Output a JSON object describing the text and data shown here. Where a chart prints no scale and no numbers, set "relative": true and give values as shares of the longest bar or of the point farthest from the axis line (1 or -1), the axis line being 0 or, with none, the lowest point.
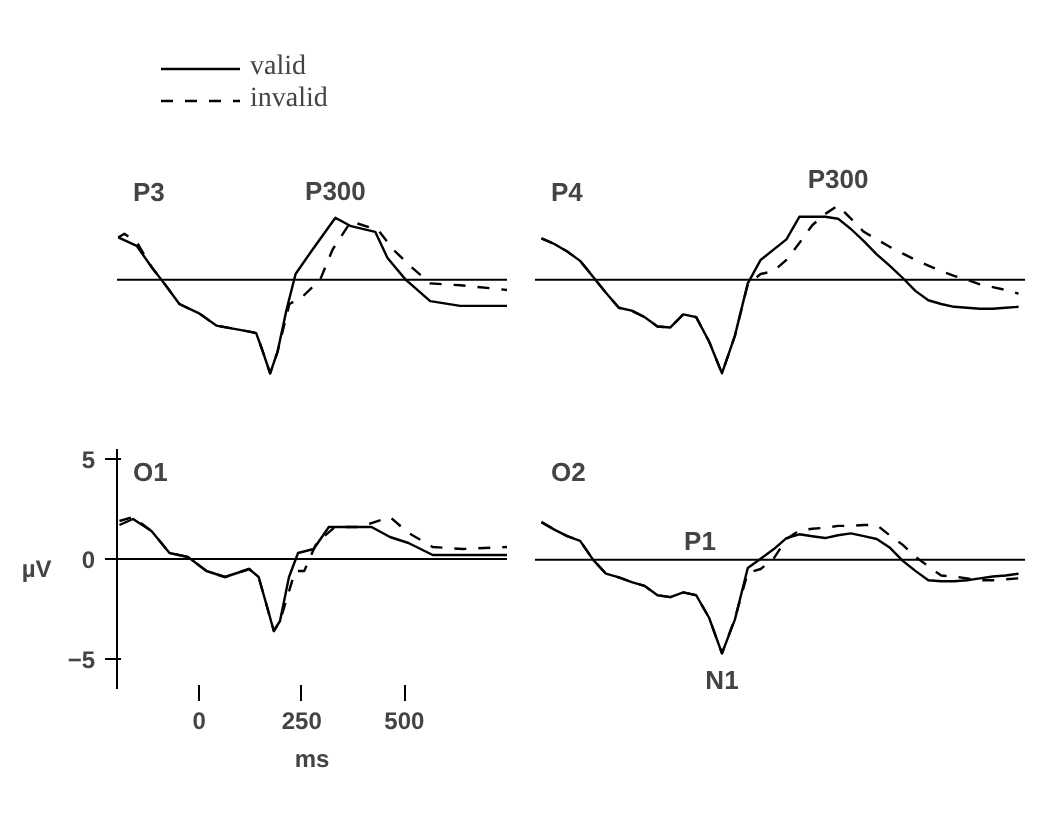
{
  "chart_data": [
    {
      "type": "line",
      "title": "P3",
      "relative": true,
      "xlim": [
        -200,
        750
      ],
      "tick_labels": false,
      "grid": false,
      "legend": "top",
      "annotations": [
        {
          "text": "P300",
          "x": 332,
          "y": 0.66
        }
      ],
      "series": [
        {
          "name": "valid",
          "color": "#000000",
          "line_style": "solid",
          "x": [
            -197,
            -152,
            -115,
            -85,
            -48,
            0,
            42,
            116,
            139,
            153,
            173,
            191,
            213,
            235,
            273,
            332,
            370,
            429,
            459,
            503,
            563,
            636,
            750
          ],
          "values": [
            0.45,
            0.36,
            0.13,
            -0.04,
            -0.26,
            -0.36,
            -0.49,
            -0.55,
            -0.57,
            -0.74,
            -1,
            -0.77,
            -0.32,
            0.06,
            0.3,
            0.66,
            0.57,
            0.51,
            0.23,
            0,
            -0.23,
            -0.28,
            -0.28
          ]
        },
        {
          "name": "invalid",
          "color": "#000000",
          "line_style": "dashed",
          "x": [
            -197,
            -182,
            -152,
            -115,
            -85,
            -48,
            0,
            42,
            116,
            139,
            153,
            173,
            191,
            220,
            250,
            295,
            325,
            370,
            436,
            473,
            518,
            563,
            636,
            750
          ],
          "values": [
            0.45,
            0.49,
            0.4,
            0.13,
            -0.04,
            -0.26,
            -0.36,
            -0.49,
            -0.55,
            -0.57,
            -0.74,
            -1,
            -0.77,
            -0.26,
            -0.19,
            0,
            0.32,
            0.62,
            0.53,
            0.32,
            0.13,
            -0.04,
            -0.06,
            -0.11
          ]
        }
      ]
    },
    {
      "type": "line",
      "title": "O1",
      "xlabel": "ms",
      "ylabel": "µV",
      "xlim": [
        -200,
        750
      ],
      "ylim": [
        -6.5,
        5.5
      ],
      "xticks": [
        0,
        250,
        500
      ],
      "yticks": [
        -5,
        0,
        5
      ],
      "grid": false,
      "ref_lines": [
        {
          "axis": "y",
          "value": 0
        }
      ],
      "series": [
        {
          "color": "#000000",
          "line_style": "solid",
          "x": [
            -194,
            -161,
            -116,
            -72,
            -27,
            18,
            63,
            122,
            145,
            167,
            182,
            197,
            219,
            241,
            279,
            316,
            361,
            420,
            465,
            510,
            569,
            642,
            750
          ],
          "values": [
            1.7,
            2.0,
            1.4,
            0.3,
            0.1,
            -0.6,
            -0.9,
            -0.5,
            -0.9,
            -2.5,
            -3.6,
            -3.1,
            -0.9,
            0.3,
            0.5,
            1.6,
            1.6,
            1.6,
            1.1,
            0.8,
            0.2,
            0.2,
            0.2
          ]
        },
        {
          "color": "#000000",
          "line_style": "dashed",
          "x": [
            -194,
            -161,
            -116,
            -72,
            -27,
            18,
            63,
            122,
            145,
            167,
            182,
            197,
            234,
            256,
            286,
            331,
            390,
            465,
            510,
            569,
            642,
            750
          ],
          "values": [
            1.9,
            2.1,
            1.4,
            0.3,
            0.1,
            -0.6,
            -0.9,
            -0.5,
            -0.9,
            -2.5,
            -3.6,
            -3.1,
            -0.6,
            -0.6,
            0.8,
            1.6,
            1.6,
            2.1,
            1.3,
            0.6,
            0.5,
            0.6
          ]
        }
      ]
    },
    {
      "type": "line",
      "title": "P4",
      "relative": true,
      "tick_labels": false,
      "grid": false,
      "categories": [
        null,
        null,
        null,
        null,
        null,
        null,
        null,
        null,
        null,
        null,
        null,
        null,
        null,
        null,
        null,
        null,
        null,
        null,
        null,
        null,
        null,
        null,
        null,
        null,
        null,
        null,
        null,
        null,
        null,
        null,
        null,
        null,
        null,
        null,
        null,
        null,
        null,
        null
      ],
      "annotations": [
        {
          "text": "P300",
          "y": 0.79
        }
      ],
      "series": [
        {
          "color": "#000000",
          "line_style": "solid",
          "values": [
            0.44,
            0.38,
            0.3,
            0.2,
            0.03,
            -0.14,
            -0.3,
            -0.33,
            -0.4,
            -0.5,
            -0.51,
            -0.37,
            -0.4,
            -0.66,
            -1,
            -0.6,
            -0.04,
            0.21,
            0.32,
            0.43,
            0.67,
            0.67,
            0.67,
            0.65,
            0.54,
            0.41,
            0.27,
            0.15,
            0.02,
            -0.12,
            -0.22,
            -0.26,
            -0.29,
            -0.3,
            -0.31,
            -0.31,
            -0.3,
            -0.29
          ]
        },
        {
          "color": "#000000",
          "line_style": "dashed",
          "values": [
            0.44,
            0.38,
            0.3,
            0.2,
            0.03,
            -0.14,
            -0.3,
            -0.33,
            -0.4,
            -0.5,
            -0.51,
            -0.37,
            -0.4,
            -0.66,
            -1,
            -0.6,
            -0.05,
            0.06,
            0.09,
            0.21,
            0.39,
            0.58,
            0.7,
            0.79,
            0.65,
            0.51,
            0.43,
            0.35,
            0.28,
            0.21,
            0.15,
            0.09,
            0.04,
            0,
            -0.05,
            -0.08,
            -0.11,
            -0.15
          ]
        }
      ]
    },
    {
      "type": "line",
      "title": "O2",
      "relative": true,
      "tick_labels": false,
      "grid": false,
      "categories": [
        null,
        null,
        null,
        null,
        null,
        null,
        null,
        null,
        null,
        null,
        null,
        null,
        null,
        null,
        null,
        null,
        null,
        null,
        null,
        null,
        null,
        null,
        null,
        null,
        null,
        null,
        null,
        null,
        null,
        null,
        null,
        null,
        null,
        null,
        null,
        null,
        null,
        null
      ],
      "annotations": [
        "P1",
        {
          "text": "N1",
          "y": -1
        }
      ],
      "series": [
        {
          "color": "#000000",
          "line_style": "solid",
          "values": [
            0.4,
            0.32,
            0.25,
            0.2,
            0,
            -0.15,
            -0.19,
            -0.24,
            -0.28,
            -0.38,
            -0.4,
            -0.35,
            -0.38,
            -0.62,
            -1,
            -0.64,
            -0.09,
            0.01,
            0.11,
            0.23,
            0.27,
            0.25,
            0.23,
            0.26,
            0.28,
            0.25,
            0.22,
            0.13,
            -0.01,
            -0.12,
            -0.22,
            -0.23,
            -0.23,
            -0.22,
            -0.2,
            -0.18,
            -0.17,
            -0.15
          ]
        },
        {
          "color": "#000000",
          "line_style": "dashed",
          "values": [
            0.4,
            0.32,
            0.25,
            0.2,
            0,
            -0.15,
            -0.19,
            -0.24,
            -0.28,
            -0.38,
            -0.4,
            -0.35,
            -0.38,
            -0.62,
            -1,
            -0.63,
            -0.14,
            -0.1,
            0.01,
            0.22,
            0.31,
            0.33,
            0.34,
            0.36,
            0.36,
            0.37,
            0.37,
            0.26,
            0.16,
            0.03,
            -0.07,
            -0.17,
            -0.18,
            -0.2,
            -0.22,
            -0.22,
            -0.21,
            -0.2
          ]
        }
      ]
    }
  ]
}
